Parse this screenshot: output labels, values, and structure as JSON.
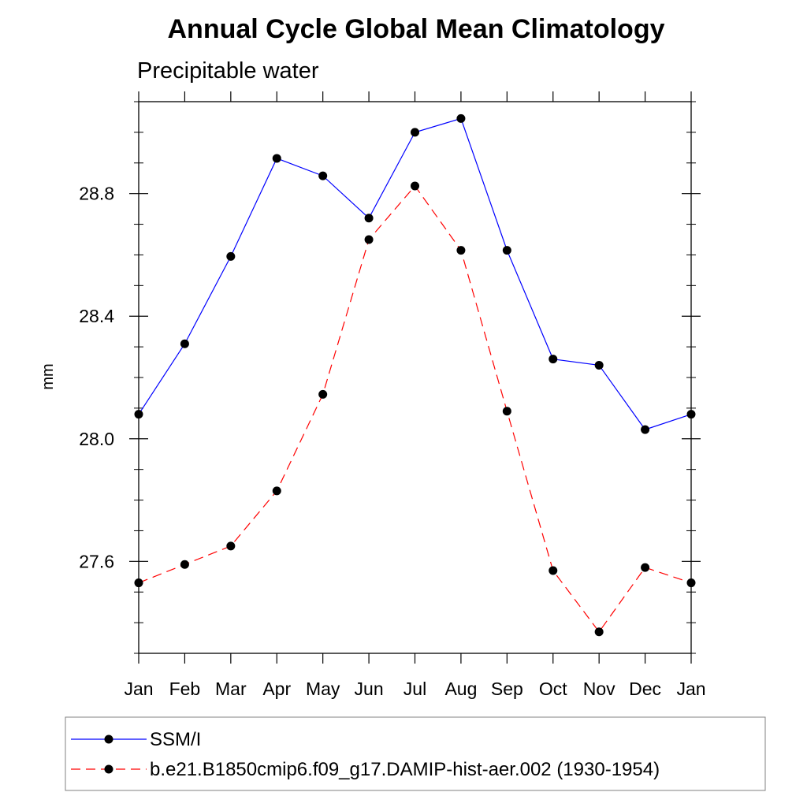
{
  "chart_data": {
    "type": "line",
    "title": "Annual Cycle Global Mean Climatology",
    "subtitle": "Precipitable water",
    "xlabel": "",
    "ylabel": "mm",
    "categories": [
      "Jan",
      "Feb",
      "Mar",
      "Apr",
      "May",
      "Jun",
      "Jul",
      "Aug",
      "Sep",
      "Oct",
      "Nov",
      "Dec",
      "Jan"
    ],
    "y_ticks": [
      "27.6",
      "28.0",
      "28.4",
      "28.8"
    ],
    "y_tick_values": [
      27.6,
      28.0,
      28.4,
      28.8
    ],
    "ylim": [
      27.3,
      29.1
    ],
    "grid": false,
    "legend_position": "bottom",
    "series": [
      {
        "name": "SSM/I",
        "color": "#0000ff",
        "line_style": "solid",
        "values": [
          28.08,
          28.31,
          28.595,
          28.915,
          28.858,
          28.72,
          29.0,
          29.045,
          28.615,
          28.26,
          28.24,
          28.03,
          28.08
        ]
      },
      {
        "name": "b.e21.B1850cmip6.f09_g17.DAMIP-hist-aer.002 (1930-1954)",
        "color": "#ff0000",
        "line_style": "dashed",
        "values": [
          27.53,
          27.59,
          27.65,
          27.83,
          28.145,
          28.65,
          28.825,
          28.615,
          28.09,
          27.57,
          27.37,
          27.58,
          27.53
        ]
      }
    ]
  }
}
